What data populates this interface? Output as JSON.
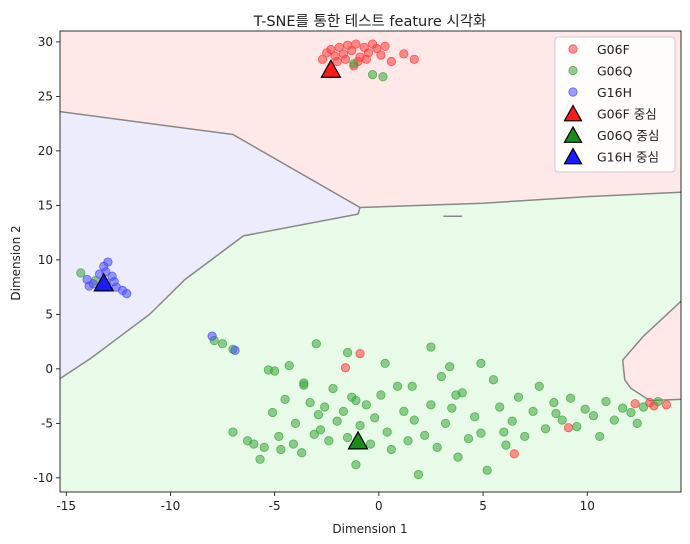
{
  "chart_data": {
    "type": "scatter",
    "title": "T-SNE를 통한 테스트 feature 시각화",
    "xlabel": "Dimension 1",
    "ylabel": "Dimension 2",
    "xlim": [
      -15.3,
      14.5
    ],
    "ylim": [
      -11.3,
      31.0
    ],
    "x_ticks": [
      -15,
      -10,
      -5,
      0,
      5,
      10
    ],
    "y_ticks": [
      -10,
      -5,
      0,
      5,
      10,
      15,
      20,
      25,
      30
    ],
    "grid": false,
    "legend_position": "top-right",
    "colors": {
      "G06F": "#ff3b3b",
      "G06Q": "#3aa63a",
      "G16H": "#4a4aff",
      "region_G06F": "#ffe8e8",
      "region_G06Q": "#e8fbe8",
      "region_G16H": "#ececfc",
      "boundary": "#888888"
    },
    "legend": [
      {
        "label": "G06F",
        "kind": "point",
        "series": "G06F"
      },
      {
        "label": "G06Q",
        "kind": "point",
        "series": "G06Q"
      },
      {
        "label": "G16H",
        "kind": "point",
        "series": "G16H"
      },
      {
        "label": "G06F 중심",
        "kind": "centroid",
        "series": "G06F"
      },
      {
        "label": "G06Q 중심",
        "kind": "centroid",
        "series": "G06Q"
      },
      {
        "label": "G16H 중심",
        "kind": "centroid",
        "series": "G16H"
      }
    ],
    "series": [
      {
        "name": "G06F",
        "points": [
          [
            -2.7,
            28.4
          ],
          [
            -2.5,
            29.0
          ],
          [
            -2.3,
            29.3
          ],
          [
            -2.1,
            28.7
          ],
          [
            -1.9,
            29.5
          ],
          [
            -1.7,
            28.9
          ],
          [
            -1.5,
            29.7
          ],
          [
            -1.3,
            29.2
          ],
          [
            -1.1,
            29.8
          ],
          [
            -0.9,
            28.6
          ],
          [
            -0.7,
            29.5
          ],
          [
            -0.5,
            29.0
          ],
          [
            -0.3,
            29.8
          ],
          [
            -0.1,
            29.4
          ],
          [
            0.1,
            28.8
          ],
          [
            0.3,
            29.6
          ],
          [
            -2.0,
            28.2
          ],
          [
            -1.6,
            28.4
          ],
          [
            -1.0,
            28.2
          ],
          [
            -0.6,
            28.4
          ],
          [
            0.6,
            28.2
          ],
          [
            1.2,
            28.9
          ],
          [
            1.7,
            28.4
          ],
          [
            -1.2,
            27.8
          ],
          [
            -2.3,
            27.6
          ],
          [
            -0.9,
            1.4
          ],
          [
            -1.6,
            0.1
          ],
          [
            6.5,
            -7.8
          ],
          [
            9.1,
            -5.4
          ],
          [
            12.3,
            -3.2
          ],
          [
            13.0,
            -3.1
          ],
          [
            13.2,
            -3.4
          ],
          [
            13.8,
            -3.3
          ]
        ]
      },
      {
        "name": "G06Q",
        "points": [
          [
            -1.2,
            28.0
          ],
          [
            -0.3,
            27.0
          ],
          [
            0.2,
            26.8
          ],
          [
            -14.3,
            8.8
          ],
          [
            -13.6,
            8.1
          ],
          [
            -13.1,
            7.9
          ],
          [
            -7.9,
            2.6
          ],
          [
            -7.5,
            2.3
          ],
          [
            -7.0,
            1.8
          ],
          [
            -3.0,
            2.3
          ],
          [
            -1.5,
            1.5
          ],
          [
            0.3,
            0.5
          ],
          [
            2.5,
            2.0
          ],
          [
            3.4,
            0.2
          ],
          [
            4.9,
            0.5
          ],
          [
            -4.3,
            0.3
          ],
          [
            -5.0,
            -0.2
          ],
          [
            -5.3,
            -0.1
          ],
          [
            -7.0,
            -5.8
          ],
          [
            -6.3,
            -6.6
          ],
          [
            -6.0,
            -6.9
          ],
          [
            -5.7,
            -8.3
          ],
          [
            -5.5,
            -7.2
          ],
          [
            -5.1,
            -4.0
          ],
          [
            -4.8,
            -6.2
          ],
          [
            -4.7,
            -7.4
          ],
          [
            -4.5,
            -2.8
          ],
          [
            -4.1,
            -6.9
          ],
          [
            -4.0,
            -5.0
          ],
          [
            -3.7,
            -7.7
          ],
          [
            -3.6,
            -1.5
          ],
          [
            -3.3,
            -3.1
          ],
          [
            -3.1,
            -6.0
          ],
          [
            -2.9,
            -4.2
          ],
          [
            -2.8,
            -5.6
          ],
          [
            -2.6,
            -3.5
          ],
          [
            -2.4,
            -6.6
          ],
          [
            -2.2,
            -1.8
          ],
          [
            -2.0,
            -4.8
          ],
          [
            -1.7,
            -3.9
          ],
          [
            -1.5,
            -6.3
          ],
          [
            -1.3,
            -2.6
          ],
          [
            -1.1,
            -8.8
          ],
          [
            -0.9,
            -5.2
          ],
          [
            -0.6,
            -3.3
          ],
          [
            -0.4,
            -6.9
          ],
          [
            -0.2,
            -4.5
          ],
          [
            0.1,
            -2.4
          ],
          [
            0.4,
            -5.8
          ],
          [
            0.6,
            -7.4
          ],
          [
            0.9,
            -1.6
          ],
          [
            1.2,
            -3.9
          ],
          [
            1.4,
            -6.6
          ],
          [
            1.7,
            -4.7
          ],
          [
            1.9,
            -9.7
          ],
          [
            2.2,
            -6.1
          ],
          [
            2.5,
            -3.3
          ],
          [
            2.8,
            -7.2
          ],
          [
            3.0,
            -0.7
          ],
          [
            3.2,
            -5.0
          ],
          [
            3.5,
            -3.6
          ],
          [
            3.8,
            -8.1
          ],
          [
            4.0,
            -2.2
          ],
          [
            4.3,
            -6.4
          ],
          [
            4.6,
            -4.4
          ],
          [
            4.9,
            -5.9
          ],
          [
            5.2,
            -9.3
          ],
          [
            5.5,
            -1.0
          ],
          [
            5.8,
            -3.5
          ],
          [
            6.1,
            -7.0
          ],
          [
            6.4,
            -4.8
          ],
          [
            6.7,
            -2.6
          ],
          [
            7.0,
            -6.2
          ],
          [
            7.4,
            -3.9
          ],
          [
            7.7,
            -1.6
          ],
          [
            8.0,
            -5.5
          ],
          [
            8.4,
            -3.1
          ],
          [
            8.8,
            -4.7
          ],
          [
            9.2,
            -2.7
          ],
          [
            9.5,
            -5.3
          ],
          [
            9.9,
            -3.7
          ],
          [
            10.3,
            -4.3
          ],
          [
            10.6,
            -6.2
          ],
          [
            10.9,
            -3.0
          ],
          [
            11.3,
            -4.7
          ],
          [
            11.7,
            -3.6
          ],
          [
            12.1,
            -4.0
          ],
          [
            12.4,
            -5.0
          ],
          [
            12.7,
            -3.5
          ],
          [
            13.4,
            -3.0
          ],
          [
            -3.6,
            -1.3
          ],
          [
            -1.1,
            -2.9
          ],
          [
            1.6,
            -1.6
          ],
          [
            3.7,
            -2.4
          ],
          [
            6.0,
            -5.8
          ],
          [
            8.5,
            -4.1
          ]
        ]
      },
      {
        "name": "G16H",
        "points": [
          [
            -14.0,
            8.2
          ],
          [
            -13.7,
            7.8
          ],
          [
            -13.4,
            8.7
          ],
          [
            -13.2,
            9.4
          ],
          [
            -13.0,
            9.8
          ],
          [
            -12.8,
            8.5
          ],
          [
            -12.6,
            7.5
          ],
          [
            -12.3,
            7.2
          ],
          [
            -12.1,
            6.9
          ],
          [
            -13.9,
            7.6
          ],
          [
            -12.7,
            8.0
          ],
          [
            -13.1,
            8.9
          ],
          [
            -8.0,
            3.0
          ],
          [
            -6.9,
            1.7
          ]
        ]
      }
    ],
    "centroids": [
      {
        "name": "G06F",
        "x": -2.3,
        "y": 27.4
      },
      {
        "name": "G06Q",
        "x": -1.0,
        "y": -6.7
      },
      {
        "name": "G16H",
        "x": -13.2,
        "y": 7.8
      }
    ],
    "regions": [
      {
        "name": "G06F",
        "polygon": [
          [
            -15.3,
            23.6
          ],
          [
            -7.0,
            21.5
          ],
          [
            -0.9,
            14.8
          ],
          [
            5.0,
            15.2
          ],
          [
            10.0,
            15.8
          ],
          [
            14.5,
            16.2
          ],
          [
            14.5,
            -2.8
          ],
          [
            13.0,
            -2.9
          ],
          [
            12.1,
            -1.8
          ],
          [
            11.8,
            -1.0
          ],
          [
            11.7,
            0.8
          ],
          [
            12.7,
            3.0
          ],
          [
            14.5,
            6.2
          ],
          [
            14.5,
            31.0
          ],
          [
            -15.3,
            31.0
          ]
        ]
      },
      {
        "name": "G16H",
        "polygon": [
          [
            -15.3,
            23.6
          ],
          [
            -7.0,
            21.5
          ],
          [
            -0.9,
            14.8
          ],
          [
            -1.0,
            14.2
          ],
          [
            -6.5,
            12.2
          ],
          [
            -9.3,
            8.2
          ],
          [
            -11.0,
            5.0
          ],
          [
            -13.8,
            1.0
          ],
          [
            -15.3,
            -0.9
          ]
        ]
      },
      {
        "name": "G06Q",
        "polygon": [
          [
            -15.3,
            -0.9
          ],
          [
            -13.8,
            1.0
          ],
          [
            -11.0,
            5.0
          ],
          [
            -9.3,
            8.2
          ],
          [
            -6.5,
            12.2
          ],
          [
            -1.0,
            14.2
          ],
          [
            -0.9,
            14.8
          ],
          [
            5.0,
            15.2
          ],
          [
            10.0,
            15.8
          ],
          [
            14.5,
            16.2
          ],
          [
            14.5,
            6.2
          ],
          [
            12.7,
            3.0
          ],
          [
            11.7,
            0.8
          ],
          [
            11.8,
            -1.0
          ],
          [
            12.1,
            -1.8
          ],
          [
            13.0,
            -2.9
          ],
          [
            14.5,
            -2.8
          ],
          [
            14.5,
            -11.3
          ],
          [
            -15.3,
            -11.3
          ]
        ]
      }
    ],
    "boundary_lines": [
      [
        [
          -15.3,
          23.6
        ],
        [
          -7.0,
          21.5
        ],
        [
          -0.9,
          14.8
        ],
        [
          5.0,
          15.2
        ],
        [
          10.0,
          15.8
        ],
        [
          14.5,
          16.2
        ]
      ],
      [
        [
          -15.3,
          -0.9
        ],
        [
          -13.8,
          1.0
        ],
        [
          -11.0,
          5.0
        ],
        [
          -9.3,
          8.2
        ],
        [
          -6.5,
          12.2
        ],
        [
          -1.0,
          14.2
        ],
        [
          -0.9,
          14.8
        ]
      ],
      [
        [
          14.5,
          6.2
        ],
        [
          12.7,
          3.0
        ],
        [
          11.7,
          0.8
        ],
        [
          11.8,
          -1.0
        ],
        [
          12.1,
          -1.8
        ],
        [
          13.0,
          -2.9
        ],
        [
          14.5,
          -2.8
        ]
      ],
      [
        [
          3.1,
          14.0
        ],
        [
          4.0,
          14.0
        ]
      ]
    ]
  }
}
